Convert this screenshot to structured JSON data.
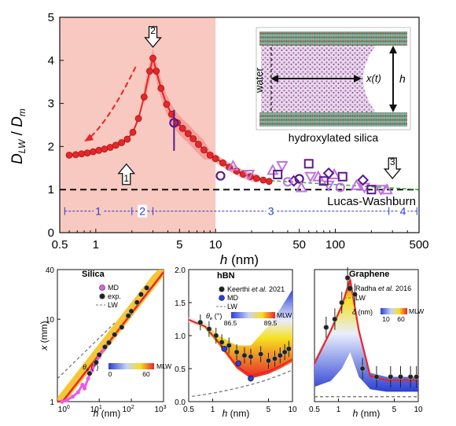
{
  "colors": {
    "red": "#e8262a",
    "shade": "#f8c9c0",
    "green": "#3cae3c",
    "purple": "#5b1a8c",
    "violet": "#c173e0",
    "blue": "#2b3fd4",
    "magenta": "#e85be8",
    "black": "#1a1a1a",
    "grey": "#777777"
  },
  "top": {
    "ylabel_main": "D",
    "ylabel_sub1": "LW",
    "ylabel_slash": " / ",
    "ylabel_main2": "D",
    "ylabel_sub2": "m",
    "xlabel_var": "h",
    "xlabel_unit": " (nm)",
    "lw_label": "Lucas-Washburn",
    "region_labels": [
      "1",
      "2",
      "3",
      "4"
    ],
    "arrow_labels": [
      "1",
      "2",
      "3"
    ],
    "inset": {
      "water": "water",
      "xt": "x(t)",
      "h": "h",
      "silica": "hydroxylated silica"
    }
  },
  "panels": {
    "silica": {
      "title": "Silica",
      "legend": [
        "MD",
        "exp.",
        "LW"
      ],
      "cbar_symbol": "θ",
      "cbar_sub": "e",
      "cbar_unit": " (°)",
      "cbar_left": "0",
      "cbar_right": "60",
      "cbar_end": "MLW",
      "ylabel_var": "x",
      "ylabel_unit": " (mm)",
      "xlabel_var": "h",
      "xlabel_unit": " (nm)"
    },
    "hbn": {
      "title": "hBN",
      "legend_first": "Keerthi ",
      "legend_etal": "et al.",
      "legend_year": " 2021",
      "legend": [
        "MD",
        "LW"
      ],
      "cbar_symbol": "θ",
      "cbar_sub": "e",
      "cbar_unit": " (°)",
      "cbar_left": "86.5",
      "cbar_right": "89.5",
      "cbar_end": "MLW",
      "xlabel_var": "h",
      "xlabel_unit": " (nm)"
    },
    "graphene": {
      "title": "Graphene",
      "legend_first": "Radha ",
      "legend_etal": "et al.",
      "legend_year": " 2016",
      "legend": [
        "LW"
      ],
      "cbar_symbol": "δ",
      "cbar_unit": " (nm)",
      "cbar_left": "10",
      "cbar_right": "60",
      "cbar_end": "MLW",
      "xlabel_var": "h",
      "xlabel_unit": " (nm)"
    }
  },
  "chart_data": [
    {
      "type": "line",
      "title": "",
      "xlabel": "h (nm)",
      "ylabel": "D_LW / D_m",
      "xscale": "log",
      "xlim": [
        0.5,
        500
      ],
      "ylim": [
        0,
        5
      ],
      "xticks": [
        0.5,
        1,
        5,
        10,
        50,
        100,
        500
      ],
      "yticks": [
        0,
        1,
        2,
        3,
        4,
        5
      ],
      "shaded_region": [
        0.5,
        10
      ],
      "reference_line": 1,
      "region_bounds": [
        0.55,
        2.0,
        3.0,
        280,
        480
      ],
      "arrows": [
        {
          "label": "1",
          "x": 1.8,
          "y": 1.3,
          "direction": "up"
        },
        {
          "label": "2",
          "x": 3.0,
          "y": 4.6,
          "direction": "down"
        },
        {
          "label": "3",
          "x": 300,
          "y": 1.55,
          "direction": "down"
        }
      ],
      "series": [
        {
          "marker": "circle-line",
          "color": "red",
          "x": [
            0.6,
            0.68,
            0.76,
            0.85,
            0.95,
            1.06,
            1.18,
            1.32,
            1.47,
            1.64,
            1.83,
            2.04,
            2.27,
            2.53,
            2.82,
            3.0,
            3.2,
            3.5,
            3.9,
            4.3,
            4.8,
            5.3,
            5.9,
            6.5,
            7.2,
            8.0,
            9.0,
            10.0,
            11.5,
            13.0,
            15.0,
            17.0,
            19.5,
            22.0,
            25.0,
            28.0
          ],
          "y": [
            1.8,
            1.81,
            1.83,
            1.85,
            1.88,
            1.91,
            1.94,
            1.98,
            2.03,
            2.09,
            2.17,
            2.33,
            2.65,
            3.15,
            3.75,
            4.05,
            3.75,
            3.35,
            2.98,
            2.75,
            2.55,
            2.42,
            2.3,
            2.18,
            2.05,
            1.92,
            1.8,
            1.72,
            1.62,
            1.52,
            1.43,
            1.36,
            1.3,
            1.26,
            1.22,
            1.19
          ]
        },
        {
          "marker": "circle",
          "color": "purple",
          "x": [
            4.5,
            11,
            50
          ],
          "y": [
            2.55,
            1.32,
            1.25
          ]
        },
        {
          "marker": "triangle-up",
          "color": "violet",
          "x": [
            14,
            30,
            52,
            72,
            98,
            150,
            270
          ],
          "y": [
            1.55,
            1.45,
            1.05,
            1.3,
            1.35,
            1.1,
            1.0
          ]
        },
        {
          "marker": "triangle-down",
          "color": "violet",
          "x": [
            19,
            36,
            62,
            88,
            175,
            240
          ],
          "y": [
            1.35,
            1.55,
            1.3,
            1.1,
            1.05,
            1.0
          ]
        },
        {
          "marker": "square",
          "color": "purple",
          "x": [
            33,
            60,
            80,
            115,
            200
          ],
          "y": [
            1.35,
            1.6,
            1.2,
            1.3,
            1.0
          ]
        },
        {
          "marker": "diamond",
          "color": "purple",
          "x": [
            45,
            88,
            170
          ],
          "y": [
            1.2,
            1.38,
            1.22
          ]
        },
        {
          "marker": "circle",
          "color": "violet",
          "x": [
            40,
            110
          ],
          "y": [
            1.18,
            1.05
          ]
        }
      ]
    },
    {
      "type": "scatter",
      "title": "Silica",
      "xlabel": "h (nm)",
      "ylabel": "x (mm)",
      "xscale": "log",
      "yscale": "log",
      "xlim": [
        0.5,
        1000
      ],
      "ylim": [
        1,
        40
      ],
      "yticks": [
        1,
        10,
        40
      ],
      "xtick_exponents": [
        0,
        1,
        2,
        3
      ],
      "series": [
        {
          "name": "MD",
          "x": [
            0.7,
            1.0,
            1.5,
            2.2,
            3.0,
            3.5,
            4.5,
            6.0,
            8.0,
            10,
            14
          ],
          "y": [
            1.0,
            1.05,
            1.15,
            1.3,
            1.6,
            1.45,
            1.9,
            2.4,
            3.0,
            3.5,
            4.3
          ]
        },
        {
          "name": "exp.",
          "x": [
            5,
            8,
            10,
            15,
            20,
            30,
            50,
            80,
            100,
            150,
            200,
            300
          ],
          "y": [
            2.2,
            3.0,
            3.7,
            4.6,
            5.2,
            6.5,
            8.0,
            11,
            12.5,
            16,
            20,
            24
          ]
        }
      ]
    },
    {
      "type": "line",
      "title": "hBN",
      "xlabel": "h (nm)",
      "xscale": "log",
      "xlim": [
        0.5,
        10
      ],
      "ylim": [
        0,
        2.0
      ],
      "xticks": [
        0.5,
        1,
        5,
        10
      ],
      "yticks": [
        0,
        0.5,
        1.0,
        1.5,
        2.0
      ],
      "series": [
        {
          "name": "Keerthi et al. 2021",
          "x": [
            0.7,
            0.9,
            1.1,
            1.3,
            1.6,
            2.0,
            2.5,
            3.0,
            4.0,
            5.0,
            6.0,
            7.0,
            8.0,
            9.0
          ],
          "y": [
            1.2,
            1.1,
            1.0,
            0.9,
            0.85,
            0.75,
            0.7,
            0.68,
            0.72,
            0.62,
            0.65,
            0.7,
            0.75,
            0.8
          ]
        },
        {
          "name": "MD",
          "x": [
            1.4,
            2.1,
            3.0
          ],
          "y": [
            0.8,
            0.58,
            0.35
          ]
        }
      ]
    },
    {
      "type": "line",
      "title": "Graphene",
      "xlabel": "h (nm)",
      "xscale": "log",
      "xlim": [
        0.5,
        10
      ],
      "ylim": [
        0,
        16
      ],
      "xticks": [
        0.5,
        1,
        5,
        10
      ],
      "series": [
        {
          "name": "Radha et al. 2016",
          "x": [
            0.7,
            0.9,
            1.1,
            1.3,
            1.6,
            2.0,
            3.0,
            4.5,
            6.0,
            8.0,
            9.5
          ],
          "y": [
            9,
            10,
            12,
            15,
            13,
            4,
            3,
            3,
            3,
            3,
            3
          ]
        }
      ]
    }
  ]
}
